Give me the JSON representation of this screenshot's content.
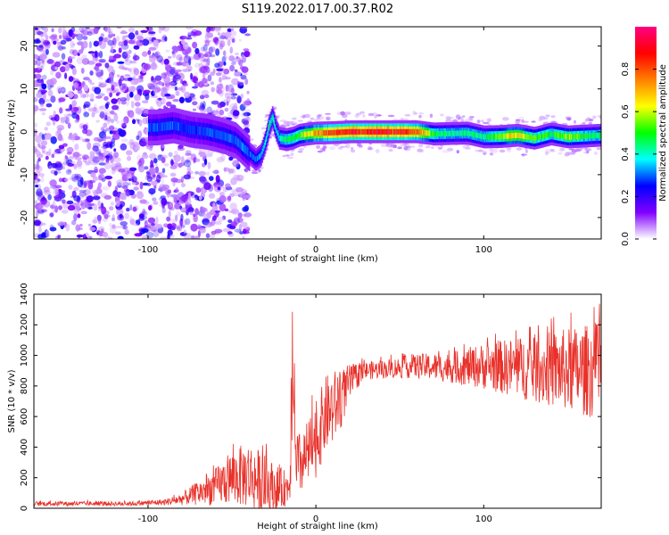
{
  "title": "S119.2022.017.00.37.R02",
  "chart_data": [
    {
      "type": "heatmap",
      "title": "S119.2022.017.00.37.R02",
      "xlabel": "Height of straight line (km)",
      "ylabel": "Frequency (Hz)",
      "xlim": [
        -168,
        170
      ],
      "ylim": [
        -25,
        24.5
      ],
      "x_ticks": [
        -100,
        0,
        100
      ],
      "x_tick_labels": [
        "-100",
        "0",
        "100"
      ],
      "y_ticks": [
        20,
        10,
        0,
        -10,
        -20
      ],
      "y_tick_labels": [
        "20",
        "10",
        "0",
        "-10",
        "-20"
      ],
      "colorbar": {
        "label": "Normalized spectral amplitude",
        "range": [
          0,
          1
        ],
        "ticks": [
          0.0,
          0.2,
          0.4,
          0.6,
          0.8
        ],
        "tick_labels": [
          "0.0",
          "0.2",
          "0.4",
          "0.6",
          "0.8"
        ],
        "colors": [
          "#ffffff",
          "#8000ff",
          "#0000ff",
          "#00ffff",
          "#00ff00",
          "#ffff00",
          "#ff8000",
          "#ff0000",
          "#ff0080"
        ]
      },
      "noise_region_x": [
        -168,
        -40
      ],
      "ridge": {
        "x": [
          -95,
          -85,
          -75,
          -65,
          -55,
          -48,
          -44,
          -40,
          -36,
          -33,
          -30,
          -28,
          -26,
          -24,
          -22,
          -18,
          -14,
          -10,
          -5,
          0,
          10,
          20,
          30,
          40,
          50,
          60,
          70,
          80,
          90,
          100,
          110,
          120,
          130,
          140,
          150,
          160,
          170
        ],
        "y": [
          1,
          1.5,
          0.5,
          0,
          -1,
          -2,
          -3.5,
          -5,
          -6.5,
          -5.5,
          -2,
          1.5,
          3.5,
          0.5,
          -1.5,
          -1.8,
          -1.5,
          -0.8,
          -0.5,
          -0.3,
          -0.2,
          0,
          0,
          0,
          0,
          0,
          -0.5,
          -0.4,
          -0.3,
          -1.2,
          -1.1,
          -0.8,
          -1.5,
          -0.5,
          -1.2,
          -1.0,
          -0.8
        ],
        "amplitude": [
          0.3,
          0.3,
          0.28,
          0.3,
          0.3,
          0.3,
          0.32,
          0.3,
          0.32,
          0.35,
          0.4,
          0.45,
          0.45,
          0.4,
          0.4,
          0.45,
          0.5,
          0.55,
          0.65,
          0.75,
          0.85,
          0.9,
          0.92,
          0.92,
          0.9,
          0.85,
          0.5,
          0.45,
          0.48,
          0.45,
          0.6,
          0.7,
          0.55,
          0.5,
          0.6,
          0.5,
          0.45
        ]
      }
    },
    {
      "type": "line",
      "xlabel": "Height of straight line (km)",
      "ylabel": "SNR (10 * v/v)",
      "xlim": [
        -168,
        170
      ],
      "ylim": [
        0,
        1400
      ],
      "x_ticks": [
        -100,
        0,
        100
      ],
      "x_tick_labels": [
        "-100",
        "0",
        "100"
      ],
      "y_ticks": [
        0,
        200,
        400,
        600,
        800,
        1000,
        1200,
        1400
      ],
      "y_tick_labels": [
        "0",
        "200",
        "400",
        "600",
        "800",
        "1000",
        "1200",
        "1400"
      ],
      "color": "#e8312a",
      "envelope": {
        "x": [
          -168,
          -140,
          -110,
          -90,
          -80,
          -70,
          -60,
          -50,
          -40,
          -30,
          -22,
          -16,
          -14,
          -12,
          -8,
          -2,
          2,
          6,
          10,
          15,
          20,
          25,
          30,
          40,
          50,
          60,
          80,
          100,
          120,
          140,
          160,
          170
        ],
        "mean": [
          30,
          30,
          30,
          40,
          60,
          100,
          140,
          200,
          220,
          150,
          120,
          140,
          500,
          250,
          300,
          400,
          500,
          620,
          650,
          720,
          820,
          870,
          900,
          910,
          920,
          930,
          920,
          930,
          920,
          910,
          900,
          900
        ],
        "spread": [
          15,
          15,
          15,
          20,
          40,
          80,
          120,
          180,
          220,
          200,
          150,
          100,
          400,
          250,
          200,
          250,
          250,
          250,
          250,
          200,
          120,
          80,
          60,
          60,
          70,
          80,
          100,
          150,
          200,
          250,
          300,
          320
        ]
      }
    }
  ]
}
